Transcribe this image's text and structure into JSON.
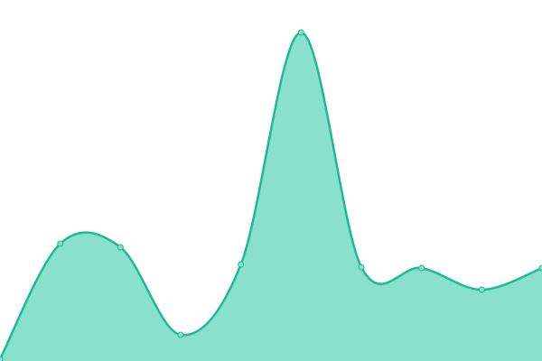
{
  "chart_data": {
    "type": "area",
    "categories": [
      null,
      null,
      null,
      null,
      null,
      null,
      null,
      null,
      null,
      null
    ],
    "series": [
      {
        "color": "#1dba96",
        "fill": "#88e0cd",
        "values": [
          2,
          130,
          126,
          29,
          107,
          364,
          104,
          103,
          79,
          103
        ]
      }
    ],
    "ylim": [
      0,
      400
    ],
    "smooth": true,
    "markers": true
  }
}
